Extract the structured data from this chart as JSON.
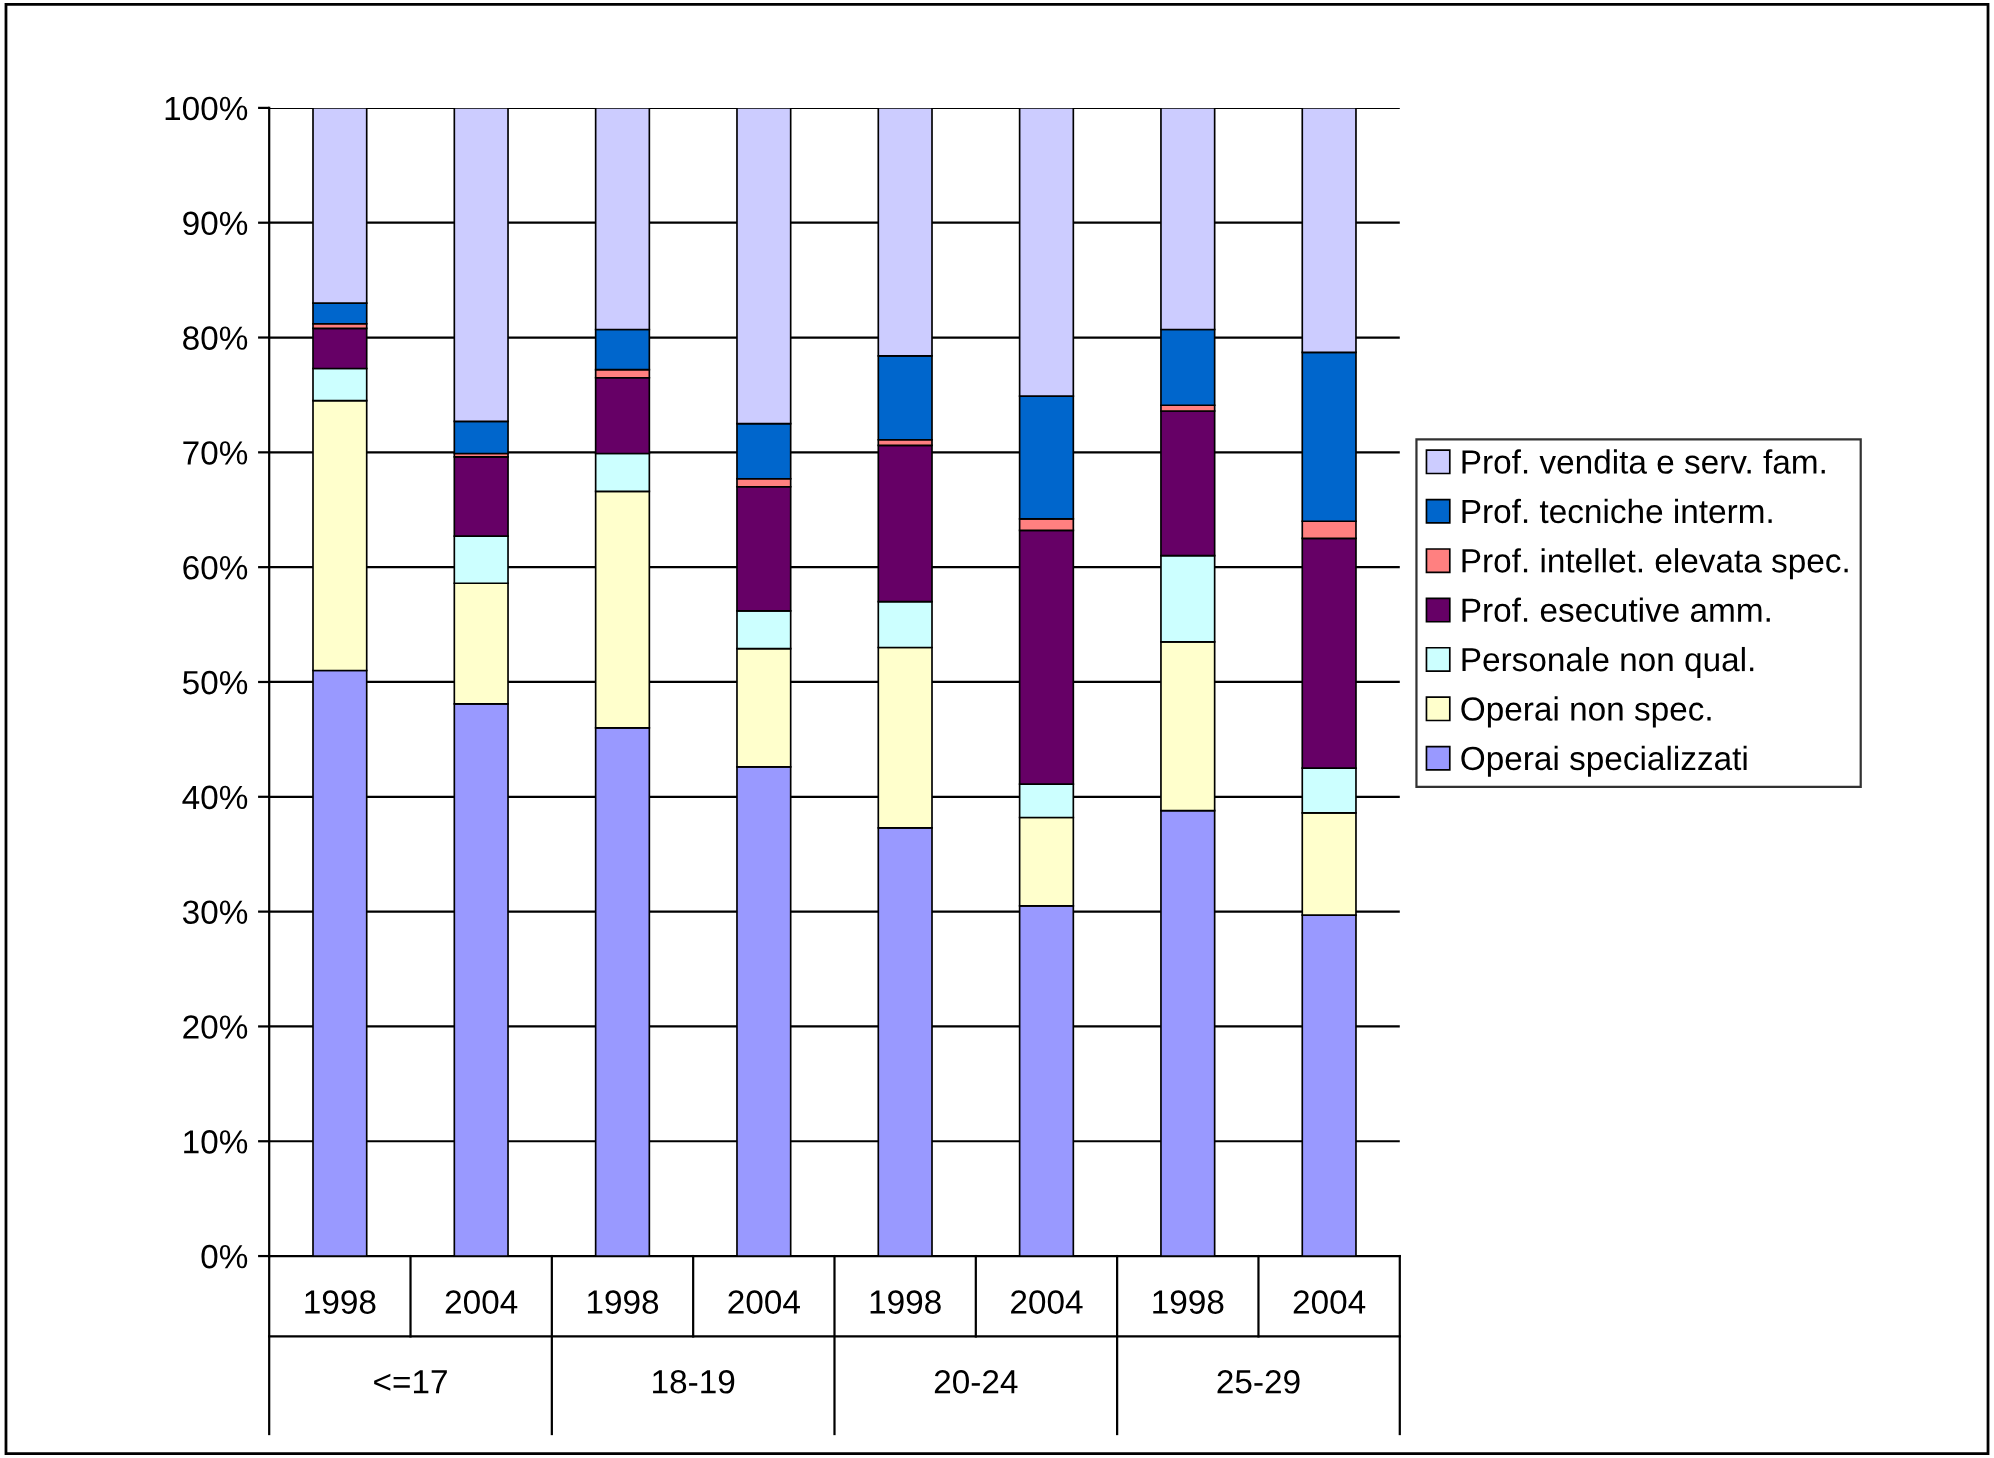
{
  "chart_data": {
    "type": "bar",
    "stacked": true,
    "categories": [
      "1998",
      "2004",
      "1998",
      "2004",
      "1998",
      "2004",
      "1998",
      "2004"
    ],
    "annotations": [
      "<=17",
      "18-19",
      "20-24",
      "25-29"
    ],
    "series": [
      {
        "name": "Operai specializzati",
        "color": "#9999ff",
        "values": [
          51.0,
          48.1,
          46.0,
          42.6,
          37.3,
          30.5,
          38.8,
          29.7
        ]
      },
      {
        "name": "Operai non spec.",
        "color": "#ffffcc",
        "values": [
          23.5,
          10.5,
          20.6,
          10.3,
          15.7,
          7.7,
          14.7,
          8.9
        ]
      },
      {
        "name": "Personale non qual.",
        "color": "#ccffff",
        "values": [
          2.8,
          4.1,
          3.3,
          3.3,
          4.0,
          2.9,
          7.5,
          3.9
        ]
      },
      {
        "name": "Prof. esecutive amm.",
        "color": "#660066",
        "values": [
          3.5,
          6.9,
          6.6,
          10.8,
          13.6,
          22.1,
          12.6,
          20.0
        ]
      },
      {
        "name": "Prof. intellet. elevata spec.",
        "color": "#ff8080",
        "values": [
          0.4,
          0.3,
          0.7,
          0.7,
          0.5,
          1.0,
          0.5,
          1.5
        ]
      },
      {
        "name": "Prof. tecniche interm.",
        "color": "#0066cc",
        "values": [
          1.8,
          2.8,
          3.5,
          4.8,
          7.3,
          10.7,
          6.6,
          14.7
        ]
      },
      {
        "name": "Prof. vendita e serv. fam.",
        "color": "#ccccff",
        "values": [
          17.0,
          27.3,
          19.3,
          27.5,
          21.6,
          25.1,
          19.3,
          21.3
        ]
      }
    ],
    "ylim": [
      0,
      100
    ],
    "yticks": [
      {
        "value": 0,
        "label": "0%"
      },
      {
        "value": 10,
        "label": "10%"
      },
      {
        "value": 20,
        "label": "20%"
      },
      {
        "value": 30,
        "label": "30%"
      },
      {
        "value": 40,
        "label": "40%"
      },
      {
        "value": 50,
        "label": "50%"
      },
      {
        "value": 60,
        "label": "60%"
      },
      {
        "value": 70,
        "label": "70%"
      },
      {
        "value": 80,
        "label": "80%"
      },
      {
        "value": 90,
        "label": "90%"
      },
      {
        "value": 100,
        "label": "100%"
      }
    ],
    "grid": "y",
    "legend": "right"
  }
}
